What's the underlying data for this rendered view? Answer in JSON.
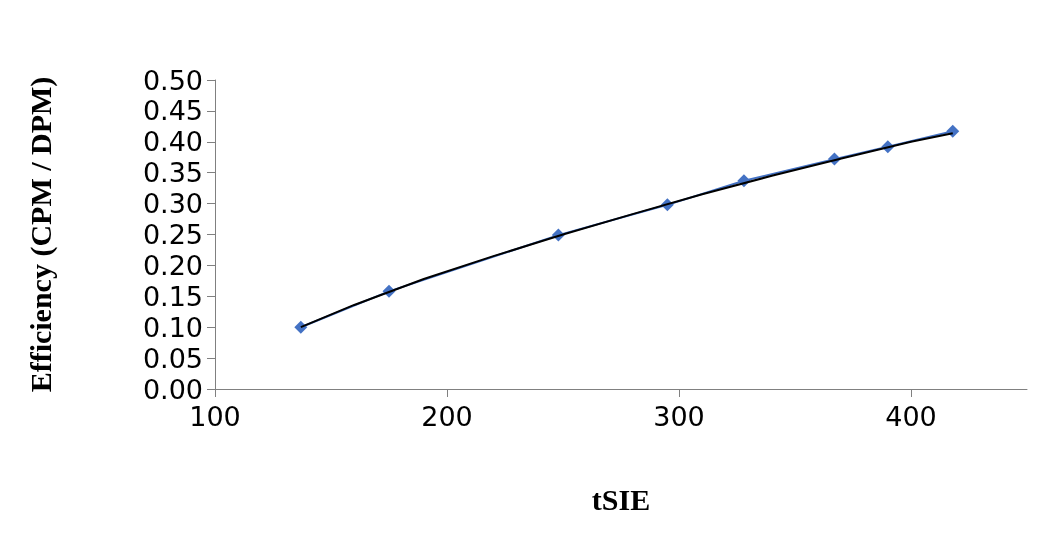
{
  "chart_data": {
    "type": "line",
    "xlabel": "tSIE",
    "ylabel": "Efficiency (CPM / DPM)",
    "xlim": [
      100,
      450
    ],
    "xticks": [
      100,
      200,
      300,
      400
    ],
    "ylim": [
      0,
      0.5
    ],
    "yticks": [
      {
        "value": 0,
        "label": "0.00"
      },
      {
        "value": 0.05,
        "label": "0.05"
      },
      {
        "value": 0.1,
        "label": "0.10"
      },
      {
        "value": 0.15,
        "label": "0.15"
      },
      {
        "value": 0.2,
        "label": "0.20"
      },
      {
        "value": 0.25,
        "label": "0.25"
      },
      {
        "value": 0.3,
        "label": "0.30"
      },
      {
        "value": 0.35,
        "label": "0.35"
      },
      {
        "value": 0.4,
        "label": "0.40"
      },
      {
        "value": 0.45,
        "label": "0.45"
      },
      {
        "value": 0.5,
        "label": "0.50"
      }
    ],
    "grid": false,
    "marker": "diamond",
    "series": [
      {
        "color": "#4472c4",
        "x": [
          137,
          175,
          248,
          295,
          328,
          367,
          390,
          418
        ],
        "values": [
          0.1,
          0.158,
          0.249,
          0.298,
          0.337,
          0.372,
          0.392,
          0.417
        ]
      },
      {
        "color": "#000000",
        "marker": "none",
        "x": [
          137,
          160,
          190,
          220,
          250,
          280,
          310,
          340,
          370,
          400,
          418
        ],
        "values": [
          0.1,
          0.136,
          0.178,
          0.215,
          0.25,
          0.283,
          0.315,
          0.345,
          0.373,
          0.4,
          0.414
        ]
      }
    ]
  }
}
